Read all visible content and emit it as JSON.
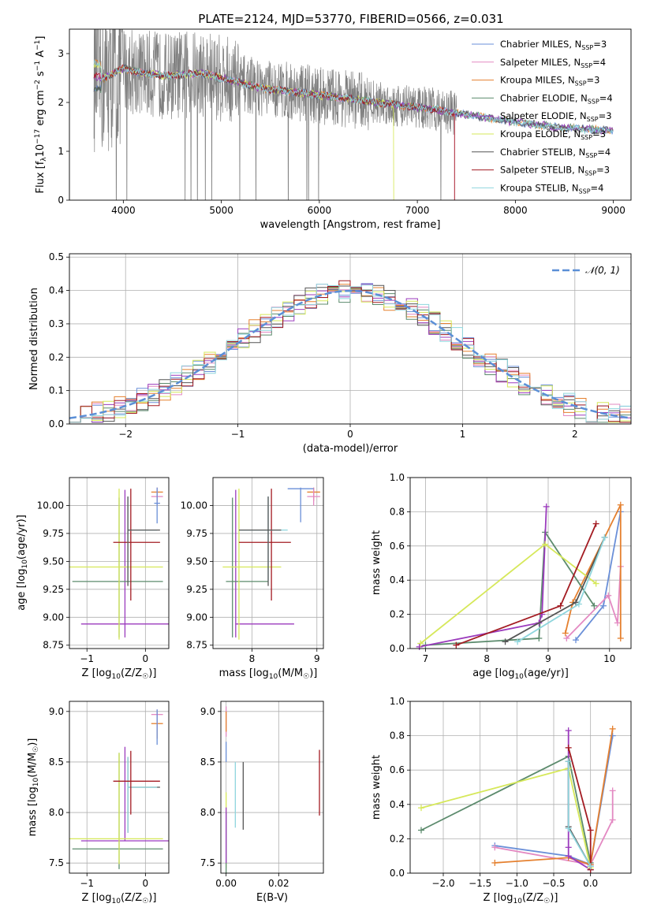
{
  "figure_title": "PLATE=2124, MJD=53770, FIBERID=0566, z=0.031",
  "colors": {
    "Chabrier MILES": "#6a8fd8",
    "Salpeter MILES": "#e389c2",
    "Kroupa MILES": "#e5802f",
    "Chabrier ELODIE": "#5c8b6d",
    "Salpeter ELODIE": "#9b3bbd",
    "Kroupa ELODIE": "#d6e85a",
    "Chabrier STELIB": "#555555",
    "Salpeter STELIB": "#a31b22",
    "Kroupa STELIB": "#8fd6dd",
    "data": "#808080",
    "normal": "#5b8fd6"
  },
  "chart_data": [
    {
      "id": "spectrum",
      "type": "line",
      "xlabel": "wavelength [Angstrom, rest frame]",
      "ylabel": "Flux [f_λ10^-17 erg cm^-2 s^-1 A^-1]",
      "xlim": [
        3450,
        9180
      ],
      "ylim": [
        0,
        3.5
      ],
      "xticks": [
        4000,
        5000,
        6000,
        7000,
        8000,
        9000
      ],
      "yticks": [
        0,
        1,
        2,
        3
      ],
      "legend_position": "upper-right",
      "data_range": [
        3700,
        7400
      ],
      "model_range": [
        3700,
        9000
      ],
      "continuum": {
        "x": [
          3700,
          3800,
          3900,
          4000,
          4100,
          4200,
          4300,
          4400,
          4500,
          4600,
          4700,
          4800,
          4900,
          5000,
          5200,
          5400,
          5600,
          5800,
          6000,
          6200,
          6400,
          6600,
          6800,
          7000,
          7200,
          7400,
          7600,
          7800,
          8000,
          8200,
          8400,
          8600,
          8800,
          9000
        ],
        "y": [
          2.55,
          2.5,
          2.6,
          2.7,
          2.65,
          2.6,
          2.58,
          2.55,
          2.55,
          2.57,
          2.58,
          2.6,
          2.55,
          2.5,
          2.4,
          2.3,
          2.25,
          2.2,
          2.15,
          2.1,
          2.05,
          2.0,
          1.95,
          1.9,
          1.85,
          1.78,
          1.72,
          1.66,
          1.6,
          1.55,
          1.5,
          1.47,
          1.44,
          1.42
        ]
      },
      "series": [
        {
          "name": "Chabrier MILES, N_SSP=3",
          "label_main": "Chabrier MILES, N",
          "label_sub": "SSP",
          "label_tail": "=3"
        },
        {
          "name": "Salpeter MILES, N_SSP=4",
          "label_main": "Salpeter MILES, N",
          "label_sub": "SSP",
          "label_tail": "=4"
        },
        {
          "name": "Kroupa MILES, N_SSP=3",
          "label_main": "Kroupa MILES, N",
          "label_sub": "SSP",
          "label_tail": "=3"
        },
        {
          "name": "Chabrier ELODIE, N_SSP=4",
          "label_main": "Chabrier ELODIE, N",
          "label_sub": "SSP",
          "label_tail": "=4"
        },
        {
          "name": "Salpeter ELODIE, N_SSP=3",
          "label_main": "Salpeter ELODIE, N",
          "label_sub": "SSP",
          "label_tail": "=3"
        },
        {
          "name": "Kroupa ELODIE, N_SSP=3",
          "label_main": "Kroupa ELODIE, N",
          "label_sub": "SSP",
          "label_tail": "=3"
        },
        {
          "name": "Chabrier STELIB, N_SSP=4",
          "label_main": "Chabrier STELIB, N",
          "label_sub": "SSP",
          "label_tail": "=4"
        },
        {
          "name": "Salpeter STELIB, N_SSP=3",
          "label_main": "Salpeter STELIB, N",
          "label_sub": "SSP",
          "label_tail": "=3"
        },
        {
          "name": "Kroupa STELIB, N_SSP=4",
          "label_main": "Kroupa STELIB, N",
          "label_sub": "SSP",
          "label_tail": "=4"
        }
      ]
    },
    {
      "id": "residuals",
      "type": "line",
      "xlabel": "(data-model)/error",
      "ylabel": "Normed distribution",
      "xlim": [
        -2.5,
        2.5
      ],
      "ylim": [
        0,
        0.51
      ],
      "xticks": [
        -2,
        -1,
        0,
        1,
        2
      ],
      "yticks": [
        0.0,
        0.1,
        0.2,
        0.3,
        0.4,
        0.5
      ],
      "legend": "𝒩(0, 1)",
      "legend_position": "upper-right",
      "bin_width": 0.1,
      "grid": true
    },
    {
      "id": "age_vs_Z",
      "type": "scatter",
      "xlabel": "Z [log10(Z/Z☉)]",
      "ylabel": "age  [log10(age/yr)]",
      "xlim": [
        -1.3,
        0.4
      ],
      "ylim": [
        8.72,
        10.25
      ],
      "xticks": [
        -1,
        0
      ],
      "yticks": [
        8.75,
        9.0,
        9.25,
        9.5,
        9.75,
        10.0
      ],
      "grid": true,
      "points": [
        {
          "series": "Salpeter ELODIE",
          "x": -0.35,
          "y": 8.94,
          "xerr": [
            0.75,
            0.75
          ],
          "yerr": [
            0.12,
            1.2
          ]
        },
        {
          "series": "Chabrier ELODIE",
          "x": -0.45,
          "y": 9.32,
          "xerr": [
            0.8,
            0.75
          ],
          "yerr": [
            0.5,
            0.75
          ]
        },
        {
          "series": "Kroupa ELODIE",
          "x": -0.45,
          "y": 9.45,
          "xerr": [
            0.85,
            0.75
          ],
          "yerr": [
            0.65,
            0.7
          ]
        },
        {
          "series": "Salpeter STELIB",
          "x": -0.25,
          "y": 9.67,
          "xerr": [
            0.3,
            0.5
          ],
          "yerr": [
            0.52,
            0.48
          ]
        },
        {
          "series": "Kroupa STELIB",
          "x": -0.3,
          "y": 9.78,
          "xerr": [
            0.0,
            0.5
          ],
          "yerr": [
            0.45,
            0.3
          ]
        },
        {
          "series": "Chabrier STELIB",
          "x": -0.3,
          "y": 9.78,
          "xerr": [
            0.0,
            0.55
          ],
          "yerr": [
            0.5,
            0.3
          ]
        },
        {
          "series": "Kroupa MILES",
          "x": 0.2,
          "y": 10.12,
          "xerr": [
            0.1,
            0.1
          ],
          "yerr": [
            0.08,
            0.04
          ]
        },
        {
          "series": "Salpeter MILES",
          "x": 0.2,
          "y": 10.08,
          "xerr": [
            0.1,
            0.1
          ],
          "yerr": [
            0.08,
            0.08
          ]
        },
        {
          "series": "Chabrier MILES",
          "x": 0.2,
          "y": 10.02,
          "xerr": [
            0.05,
            0.05
          ],
          "yerr": [
            0.18,
            0.14
          ]
        }
      ]
    },
    {
      "id": "age_vs_mass",
      "type": "scatter",
      "xlabel": "mass [log10(M/M☉)]",
      "xlim": [
        7.4,
        9.1
      ],
      "ylim": [
        8.72,
        10.25
      ],
      "xticks": [
        8,
        9
      ],
      "yticks": [
        8.75,
        9.0,
        9.25,
        9.5,
        9.75,
        10.0
      ],
      "grid": true,
      "points": [
        {
          "series": "Salpeter ELODIE",
          "x": 7.75,
          "y": 8.94,
          "xerr": [
            0.0,
            0.9
          ],
          "yerr": [
            0.12,
            1.2
          ]
        },
        {
          "series": "Chabrier ELODIE",
          "x": 7.7,
          "y": 9.32,
          "xerr": [
            0.1,
            0.55
          ],
          "yerr": [
            0.5,
            0.75
          ]
        },
        {
          "series": "Kroupa ELODIE",
          "x": 7.8,
          "y": 9.45,
          "xerr": [
            0.25,
            0.65
          ],
          "yerr": [
            0.65,
            0.7
          ]
        },
        {
          "series": "Salpeter STELIB",
          "x": 8.3,
          "y": 9.67,
          "xerr": [
            0.5,
            0.3
          ],
          "yerr": [
            0.52,
            0.48
          ]
        },
        {
          "series": "Kroupa STELIB",
          "x": 8.25,
          "y": 9.78,
          "xerr": [
            0.45,
            0.3
          ],
          "yerr": [
            0.45,
            0.3
          ]
        },
        {
          "series": "Chabrier STELIB",
          "x": 8.25,
          "y": 9.78,
          "xerr": [
            0.45,
            0.2
          ],
          "yerr": [
            0.5,
            0.3
          ]
        },
        {
          "series": "Kroupa MILES",
          "x": 8.95,
          "y": 10.12,
          "xerr": [
            0.1,
            0.1
          ],
          "yerr": [
            0.08,
            0.04
          ]
        },
        {
          "series": "Salpeter MILES",
          "x": 8.95,
          "y": 10.08,
          "xerr": [
            0.1,
            0.1
          ],
          "yerr": [
            0.08,
            0.08
          ]
        },
        {
          "series": "Chabrier MILES",
          "x": 8.75,
          "y": 10.15,
          "xerr": [
            0.2,
            0.2
          ],
          "yerr": [
            0.3,
            0.01
          ]
        }
      ]
    },
    {
      "id": "weight_vs_age",
      "type": "line",
      "xlabel": "age  [log10(age/yr)]",
      "ylabel": "mass weight",
      "xlim": [
        6.75,
        10.35
      ],
      "ylim": [
        0,
        1.0
      ],
      "xticks": [
        7,
        8,
        9,
        10
      ],
      "yticks": [
        0.0,
        0.2,
        0.4,
        0.6,
        0.8,
        1.0
      ],
      "grid": true,
      "series": [
        {
          "name": "Chabrier MILES",
          "x": [
            9.45,
            9.9,
            10.18
          ],
          "y": [
            0.05,
            0.25,
            0.8
          ]
        },
        {
          "name": "Salpeter MILES",
          "x": [
            9.3,
            9.98,
            10.13,
            10.18
          ],
          "y": [
            0.06,
            0.31,
            0.15,
            0.48
          ]
        },
        {
          "name": "Kroupa MILES",
          "x": [
            9.28,
            9.4,
            10.18,
            10.18
          ],
          "y": [
            0.09,
            0.27,
            0.84,
            0.06
          ]
        },
        {
          "name": "Chabrier ELODIE",
          "x": [
            7.0,
            8.85,
            8.95,
            9.75
          ],
          "y": [
            0.02,
            0.06,
            0.68,
            0.25
          ]
        },
        {
          "name": "Salpeter ELODIE",
          "x": [
            6.9,
            8.85,
            8.9,
            8.97
          ],
          "y": [
            0.01,
            0.15,
            0.2,
            0.83
          ]
        },
        {
          "name": "Kroupa ELODIE",
          "x": [
            6.92,
            8.95,
            9.78
          ],
          "y": [
            0.03,
            0.61,
            0.38
          ]
        },
        {
          "name": "Chabrier STELIB",
          "x": [
            8.3,
            9.45,
            9.92
          ],
          "y": [
            0.04,
            0.27,
            0.65
          ]
        },
        {
          "name": "Salpeter STELIB",
          "x": [
            7.5,
            9.2,
            9.78
          ],
          "y": [
            0.02,
            0.25,
            0.73
          ]
        },
        {
          "name": "Kroupa STELIB",
          "x": [
            8.5,
            9.5,
            9.92
          ],
          "y": [
            0.04,
            0.26,
            0.65
          ]
        }
      ]
    },
    {
      "id": "mass_vs_Z",
      "type": "scatter",
      "xlabel": "Z [log10(Z/Z☉)]",
      "ylabel": "mass [log10(M/M☉)]",
      "xlim": [
        -1.3,
        0.4
      ],
      "ylim": [
        7.4,
        9.1
      ],
      "xticks": [
        -1,
        0
      ],
      "yticks": [
        7.5,
        8.0,
        8.5,
        9.0
      ],
      "grid": true,
      "points": [
        {
          "series": "Chabrier ELODIE",
          "x": -0.45,
          "y": 7.64,
          "xerr": [
            0.8,
            0.75
          ],
          "yerr": [
            0.2,
            0.95
          ]
        },
        {
          "series": "Salpeter ELODIE",
          "x": -0.35,
          "y": 7.72,
          "xerr": [
            0.75,
            0.75
          ],
          "yerr": [
            0.0,
            0.93
          ]
        },
        {
          "series": "Kroupa ELODIE",
          "x": -0.45,
          "y": 7.74,
          "xerr": [
            0.85,
            0.75
          ],
          "yerr": [
            0.25,
            0.85
          ]
        },
        {
          "series": "Chabrier STELIB",
          "x": -0.3,
          "y": 8.25,
          "xerr": [
            0.0,
            0.55
          ],
          "yerr": [
            0.45,
            0.3
          ]
        },
        {
          "series": "Kroupa STELIB",
          "x": -0.3,
          "y": 8.25,
          "xerr": [
            0.0,
            0.5
          ],
          "yerr": [
            0.45,
            0.3
          ]
        },
        {
          "series": "Salpeter STELIB",
          "x": -0.25,
          "y": 8.31,
          "xerr": [
            0.3,
            0.5
          ],
          "yerr": [
            0.33,
            0.3
          ]
        },
        {
          "series": "Kroupa MILES",
          "x": 0.2,
          "y": 8.88,
          "xerr": [
            0.1,
            0.1
          ],
          "yerr": [
            0.15,
            0.12
          ]
        },
        {
          "series": "Salpeter MILES",
          "x": 0.2,
          "y": 8.97,
          "xerr": [
            0.1,
            0.1
          ],
          "yerr": [
            0.15,
            0.05
          ]
        },
        {
          "series": "Chabrier MILES",
          "x": 0.2,
          "y": 8.92,
          "xerr": [
            0.0,
            0.0
          ],
          "yerr": [
            0.25,
            0.1
          ]
        }
      ]
    },
    {
      "id": "mass_vs_EBV",
      "type": "scatter",
      "xlabel": "E(B-V)",
      "xlim": [
        -0.002,
        0.037
      ],
      "ylim": [
        7.4,
        9.1
      ],
      "xticks": [
        0.0,
        0.02
      ],
      "xticklabels": [
        "0.00",
        "0.02"
      ],
      "yticks": [
        7.5,
        8.0,
        8.5,
        9.0
      ],
      "grid": true,
      "points": [
        {
          "series": "Kroupa ELODIE",
          "x": 0.0,
          "y": 7.85,
          "yerr": [
            0.4,
            0.35
          ]
        },
        {
          "series": "Chabrier ELODIE",
          "x": 0.0,
          "y": 7.55,
          "yerr": [
            0.15,
            0.45
          ]
        },
        {
          "series": "Salpeter ELODIE",
          "x": 0.0,
          "y": 7.65,
          "yerr": [
            0.15,
            0.4
          ]
        },
        {
          "series": "Salpeter MILES",
          "x": 0.0,
          "y": 8.9,
          "yerr": [
            0.15,
            0.15
          ]
        },
        {
          "series": "Kroupa MILES",
          "x": 0.0,
          "y": 8.9,
          "yerr": [
            0.1,
            0.1
          ]
        },
        {
          "series": "Chabrier MILES",
          "x": 0.0,
          "y": 8.6,
          "yerr": [
            0.1,
            0.1
          ]
        },
        {
          "series": "Kroupa STELIB",
          "x": 0.0035,
          "y": 8.2,
          "yerr": [
            0.35,
            0.3
          ]
        },
        {
          "series": "Chabrier STELIB",
          "x": 0.0065,
          "y": 8.18,
          "yerr": [
            0.35,
            0.32
          ]
        },
        {
          "series": "Salpeter STELIB",
          "x": 0.0355,
          "y": 8.3,
          "yerr": [
            0.33,
            0.32
          ]
        }
      ]
    },
    {
      "id": "weight_vs_Z",
      "type": "line",
      "xlabel": "Z [log10(Z/Z☉)]",
      "ylabel": "mass weight",
      "xlim": [
        -2.45,
        0.55
      ],
      "ylim": [
        0,
        1.0
      ],
      "xticks": [
        -2.0,
        -1.5,
        -1.0,
        -0.5,
        0.0
      ],
      "yticks": [
        0.0,
        0.2,
        0.4,
        0.6,
        0.8,
        1.0
      ],
      "grid": true,
      "series": [
        {
          "name": "Chabrier MILES",
          "x": [
            -1.3,
            -0.3,
            0.0,
            0.3
          ],
          "y": [
            0.16,
            0.1,
            0.05,
            0.8
          ]
        },
        {
          "name": "Salpeter MILES",
          "x": [
            -1.3,
            0.0,
            0.3,
            0.3
          ],
          "y": [
            0.15,
            0.05,
            0.31,
            0.48
          ]
        },
        {
          "name": "Kroupa MILES",
          "x": [
            -1.3,
            -0.3,
            0.0,
            0.3
          ],
          "y": [
            0.06,
            0.09,
            0.05,
            0.84
          ]
        },
        {
          "name": "Chabrier ELODIE",
          "x": [
            -2.3,
            -0.3,
            0.0,
            0.0
          ],
          "y": [
            0.25,
            0.68,
            0.06,
            0.02
          ]
        },
        {
          "name": "Salpeter ELODIE",
          "x": [
            -0.3,
            -0.3,
            -0.3,
            0.0
          ],
          "y": [
            0.83,
            0.15,
            0.1,
            0.02
          ]
        },
        {
          "name": "Kroupa ELODIE",
          "x": [
            -2.3,
            -0.3,
            0.0
          ],
          "y": [
            0.38,
            0.61,
            0.03
          ]
        },
        {
          "name": "Chabrier STELIB",
          "x": [
            -0.3,
            -0.3,
            0.0
          ],
          "y": [
            0.65,
            0.27,
            0.04
          ]
        },
        {
          "name": "Salpeter STELIB",
          "x": [
            -0.3,
            0.0,
            0.0
          ],
          "y": [
            0.73,
            0.25,
            0.02
          ]
        },
        {
          "name": "Kroupa STELIB",
          "x": [
            -0.3,
            -0.3,
            0.0
          ],
          "y": [
            0.65,
            0.26,
            0.04
          ]
        }
      ]
    }
  ]
}
